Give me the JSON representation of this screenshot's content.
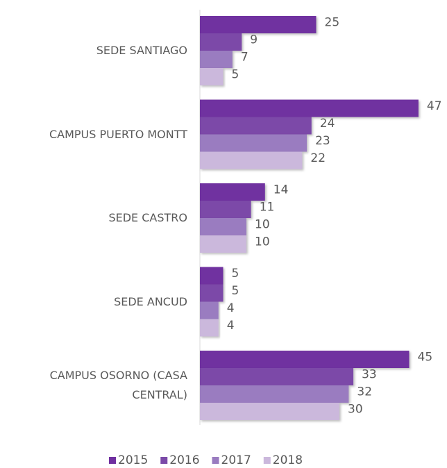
{
  "chart_data": {
    "type": "bar",
    "orientation": "horizontal",
    "categories": [
      "SEDE SANTIAGO",
      "CAMPUS PUERTO MONTT",
      "SEDE CASTRO",
      "SEDE ANCUD",
      "CAMPUS OSORNO (CASA CENTRAL)"
    ],
    "series": [
      {
        "name": "2015",
        "color": "#7030a0",
        "values": [
          25,
          47,
          14,
          5,
          45
        ]
      },
      {
        "name": "2016",
        "color": "#7b4aa8",
        "values": [
          9,
          24,
          11,
          5,
          33
        ]
      },
      {
        "name": "2017",
        "color": "#9a7cc0",
        "values": [
          7,
          23,
          10,
          4,
          32
        ]
      },
      {
        "name": "2018",
        "color": "#cbb8dc",
        "values": [
          5,
          22,
          10,
          4,
          30
        ]
      }
    ],
    "xlim": [
      0,
      50
    ],
    "legend": "bottom"
  }
}
